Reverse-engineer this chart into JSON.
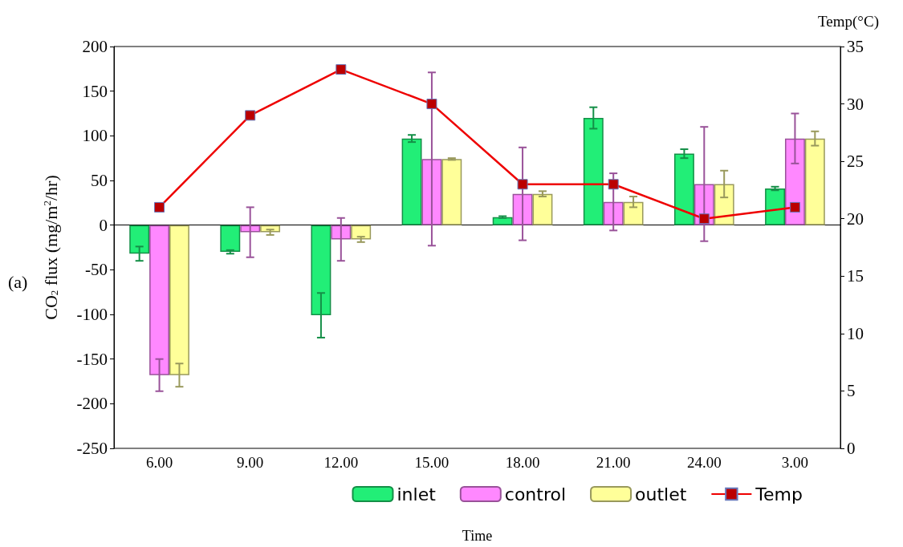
{
  "chart_data": {
    "type": "bar",
    "categories": [
      "6.00",
      "9.00",
      "12.00",
      "15.00",
      "18.00",
      "21.00",
      "24.00",
      "3.00"
    ],
    "series": [
      {
        "name": "inlet",
        "color": "#22ee77",
        "values": [
          -32,
          -30,
          -101,
          97,
          9,
          120,
          80,
          41
        ],
        "errors": [
          8,
          2,
          25,
          4,
          1,
          12,
          5,
          2
        ]
      },
      {
        "name": "control",
        "color": "#ff88ff",
        "values": [
          -168,
          -8,
          -16,
          74,
          35,
          26,
          46,
          97
        ],
        "errors": [
          18,
          28,
          24,
          97,
          52,
          32,
          64,
          28
        ]
      },
      {
        "name": "outlet",
        "color": "#ffff99",
        "values": [
          -168,
          -8,
          -16,
          74,
          35,
          26,
          46,
          97
        ],
        "errors": [
          13,
          3,
          3,
          1,
          3,
          6,
          15,
          8
        ]
      },
      {
        "name": "Temp",
        "type": "line",
        "axis": "y2",
        "color": "#ee0000",
        "marker": "square",
        "values": [
          21,
          29,
          33,
          30,
          23,
          23,
          20,
          21
        ]
      }
    ],
    "xlabel": "Time",
    "ylabel": "CO$_{2}$ flux (mg/m$^{2}$/hr)",
    "y2label": "Temp(°C)",
    "annotations": [
      "(a)"
    ],
    "ylim": [
      -250,
      200
    ],
    "yticks": [
      -250,
      -200,
      -150,
      -100,
      -50,
      0,
      50,
      100,
      150,
      200
    ],
    "y2lim": [
      0,
      35
    ],
    "y2ticks": [
      0,
      5,
      10,
      15,
      20,
      25,
      30,
      35
    ],
    "legend": "bottom right"
  }
}
